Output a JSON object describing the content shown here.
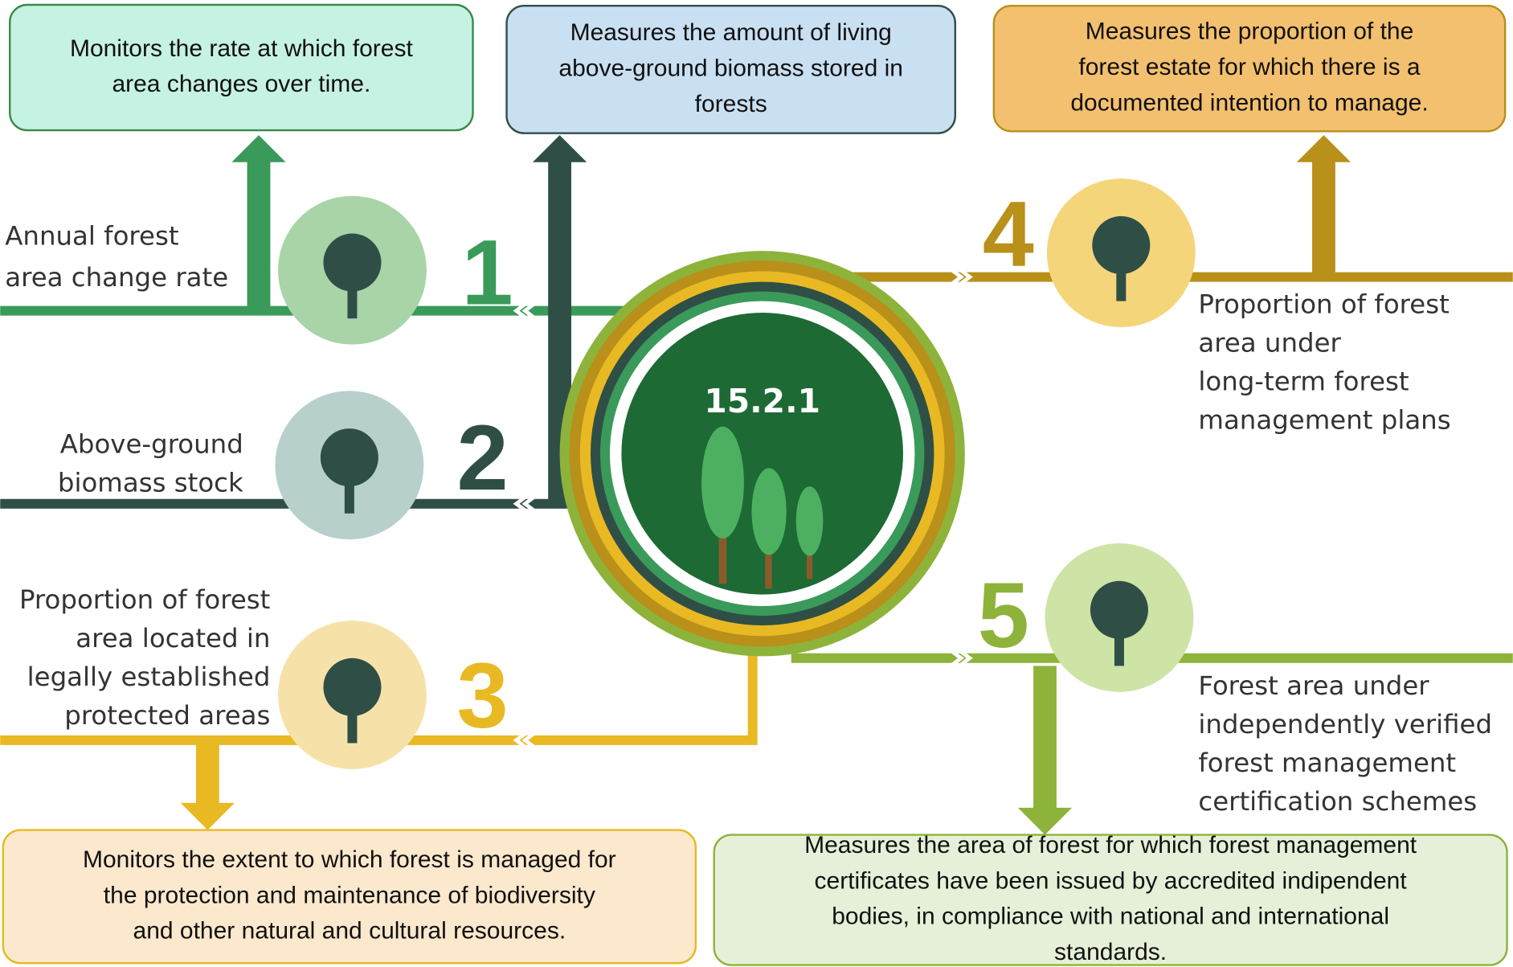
{
  "center": "15.2.1",
  "indicators": [
    {
      "number": "1",
      "label": [
        "Annual forest",
        "area change rate"
      ],
      "description": [
        "Monitors the rate at which forest",
        "area changes over time."
      ]
    },
    {
      "number": "2",
      "label": [
        "Above-ground",
        "biomass stock"
      ],
      "description": [
        "Measures the amount of living",
        "above-ground biomass stored in",
        "forests"
      ]
    },
    {
      "number": "3",
      "label": [
        "Proportion of forest",
        "area located in",
        "legally established",
        "protected areas"
      ],
      "description": [
        "Monitors the extent to which forest is managed for",
        "the protection and maintenance of biodiversity",
        "and other natural and cultural resources."
      ]
    },
    {
      "number": "4",
      "label": [
        "Proportion of forest",
        "area under",
        "long-term forest",
        "management plans"
      ],
      "description": [
        "Measures the proportion of the",
        "forest estate for which there is a",
        "documented intention to manage."
      ]
    },
    {
      "number": "5",
      "label": [
        "Forest area under",
        "independently verified",
        "forest management",
        "certification schemes"
      ],
      "description": [
        "Measures the area of forest for which forest management",
        "certificates have been issued by accredited indipendent",
        "bodies, in compliance with national and international",
        "standards."
      ]
    }
  ]
}
